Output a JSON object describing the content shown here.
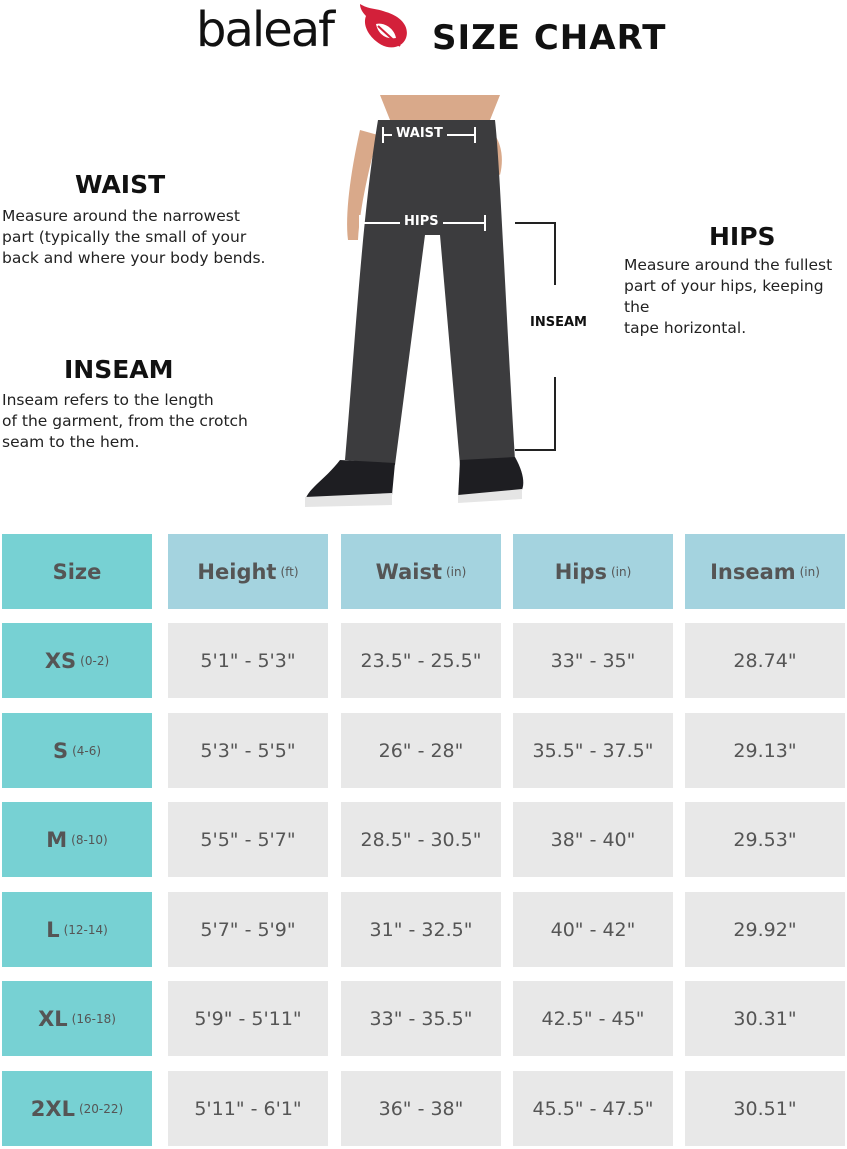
{
  "brand": "baleaf",
  "title": "SIZE CHART",
  "colors": {
    "size_col": "#77d1d3",
    "header": "#a4d3df",
    "cell": "#e8e8e8",
    "logo": "#d3203a"
  },
  "guide": {
    "waist": {
      "heading": "WAIST",
      "lines": [
        "Measure around the narrowest",
        "part (typically the small of your",
        "back and where your body bends."
      ]
    },
    "hips": {
      "heading": "HIPS",
      "lines": [
        "Measure around the fullest",
        "part of your hips, keeping the",
        "tape horizontal."
      ]
    },
    "inseam": {
      "heading": "INSEAM",
      "lines": [
        "Inseam refers to the length",
        "of the garment, from the crotch",
        "seam to the hem."
      ]
    },
    "labels": {
      "waist": "WAIST",
      "hips": "HIPS",
      "inseam": "INSEAM"
    }
  },
  "table": {
    "headers": [
      {
        "label": "Size",
        "unit": ""
      },
      {
        "label": "Height",
        "unit": "(ft)"
      },
      {
        "label": "Waist",
        "unit": "(in)"
      },
      {
        "label": "Hips",
        "unit": "(in)"
      },
      {
        "label": "Inseam",
        "unit": "(in)"
      }
    ],
    "rows": [
      {
        "size": "XS",
        "range": "(0-2)",
        "height": "5'1\" - 5'3\"",
        "waist": "23.5\" - 25.5\"",
        "hips": "33\" - 35\"",
        "inseam": "28.74\""
      },
      {
        "size": "S",
        "range": "(4-6)",
        "height": "5'3\" - 5'5\"",
        "waist": "26\" - 28\"",
        "hips": "35.5\" - 37.5\"",
        "inseam": "29.13\""
      },
      {
        "size": "M",
        "range": "(8-10)",
        "height": "5'5\" - 5'7\"",
        "waist": "28.5\" - 30.5\"",
        "hips": "38\" - 40\"",
        "inseam": "29.53\""
      },
      {
        "size": "L",
        "range": "(12-14)",
        "height": "5'7\" - 5'9\"",
        "waist": "31\" - 32.5\"",
        "hips": "40\" - 42\"",
        "inseam": "29.92\""
      },
      {
        "size": "XL",
        "range": "(16-18)",
        "height": "5'9\" - 5'11\"",
        "waist": "33\" - 35.5\"",
        "hips": "42.5\" - 45\"",
        "inseam": "30.31\""
      },
      {
        "size": "2XL",
        "range": "(20-22)",
        "height": "5'11\" - 6'1\"",
        "waist": "36\" - 38\"",
        "hips": "45.5\" - 47.5\"",
        "inseam": "30.51\""
      }
    ]
  }
}
